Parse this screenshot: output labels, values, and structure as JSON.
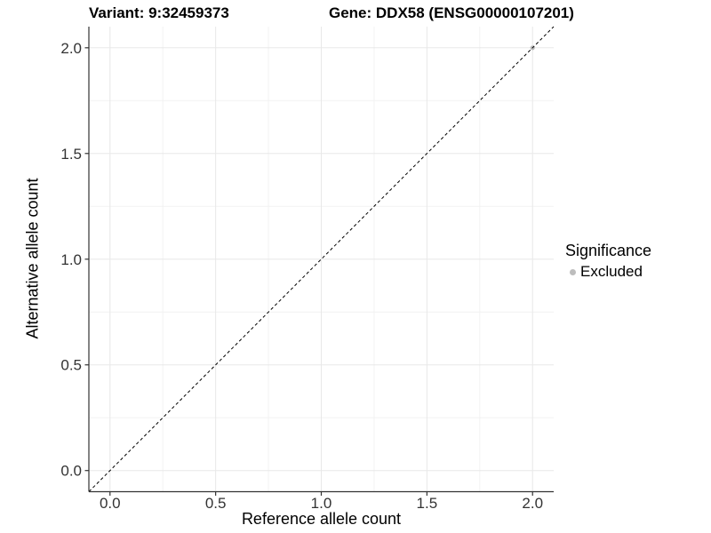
{
  "header": {
    "title_variant": "Variant: 9:32459373",
    "title_gene": "Gene: DDX58 (ENSG00000107201)"
  },
  "legend": {
    "title": "Significance",
    "entries": [
      {
        "label": "Excluded",
        "color": "#bdbdbd",
        "marker": "circle-point-icon"
      }
    ]
  },
  "chart_data": {
    "type": "scatter",
    "title": "Variant: 9:32459373    Gene: DDX58 (ENSG00000107201)",
    "xlabel": "Reference allele count",
    "ylabel": "Alternative allele count",
    "xlim": [
      -0.1,
      2.1
    ],
    "ylim": [
      -0.1,
      2.1
    ],
    "x_ticks": [
      0.0,
      0.5,
      1.0,
      1.5,
      2.0
    ],
    "x_tick_labels": [
      "0.0",
      "0.5",
      "1.0",
      "1.5",
      "2.0"
    ],
    "y_ticks": [
      0.0,
      0.5,
      1.0,
      1.5,
      2.0
    ],
    "y_tick_labels": [
      "0.0",
      "0.5",
      "1.0",
      "1.5",
      "2.0"
    ],
    "x_minor_ticks": [
      0.25,
      0.75,
      1.25,
      1.75
    ],
    "y_minor_ticks": [
      0.25,
      0.75,
      1.25,
      1.75
    ],
    "grid": "major+minor",
    "legend_position": "right",
    "series": [
      {
        "name": "Excluded",
        "color": "#bdbdbd",
        "points": [
          {
            "x": 2.0,
            "y": 2.0
          }
        ]
      }
    ],
    "reference_line": {
      "type": "identity",
      "slope": 1,
      "intercept": 0,
      "linetype": "dashed",
      "color": "#000000"
    }
  },
  "colors": {
    "background": "#ffffff",
    "grid_major": "#e8e8e8",
    "grid_minor": "#f2f2f2",
    "axis_line": "#333333",
    "tick_label": "#333333",
    "point": "#bdbdbd"
  }
}
